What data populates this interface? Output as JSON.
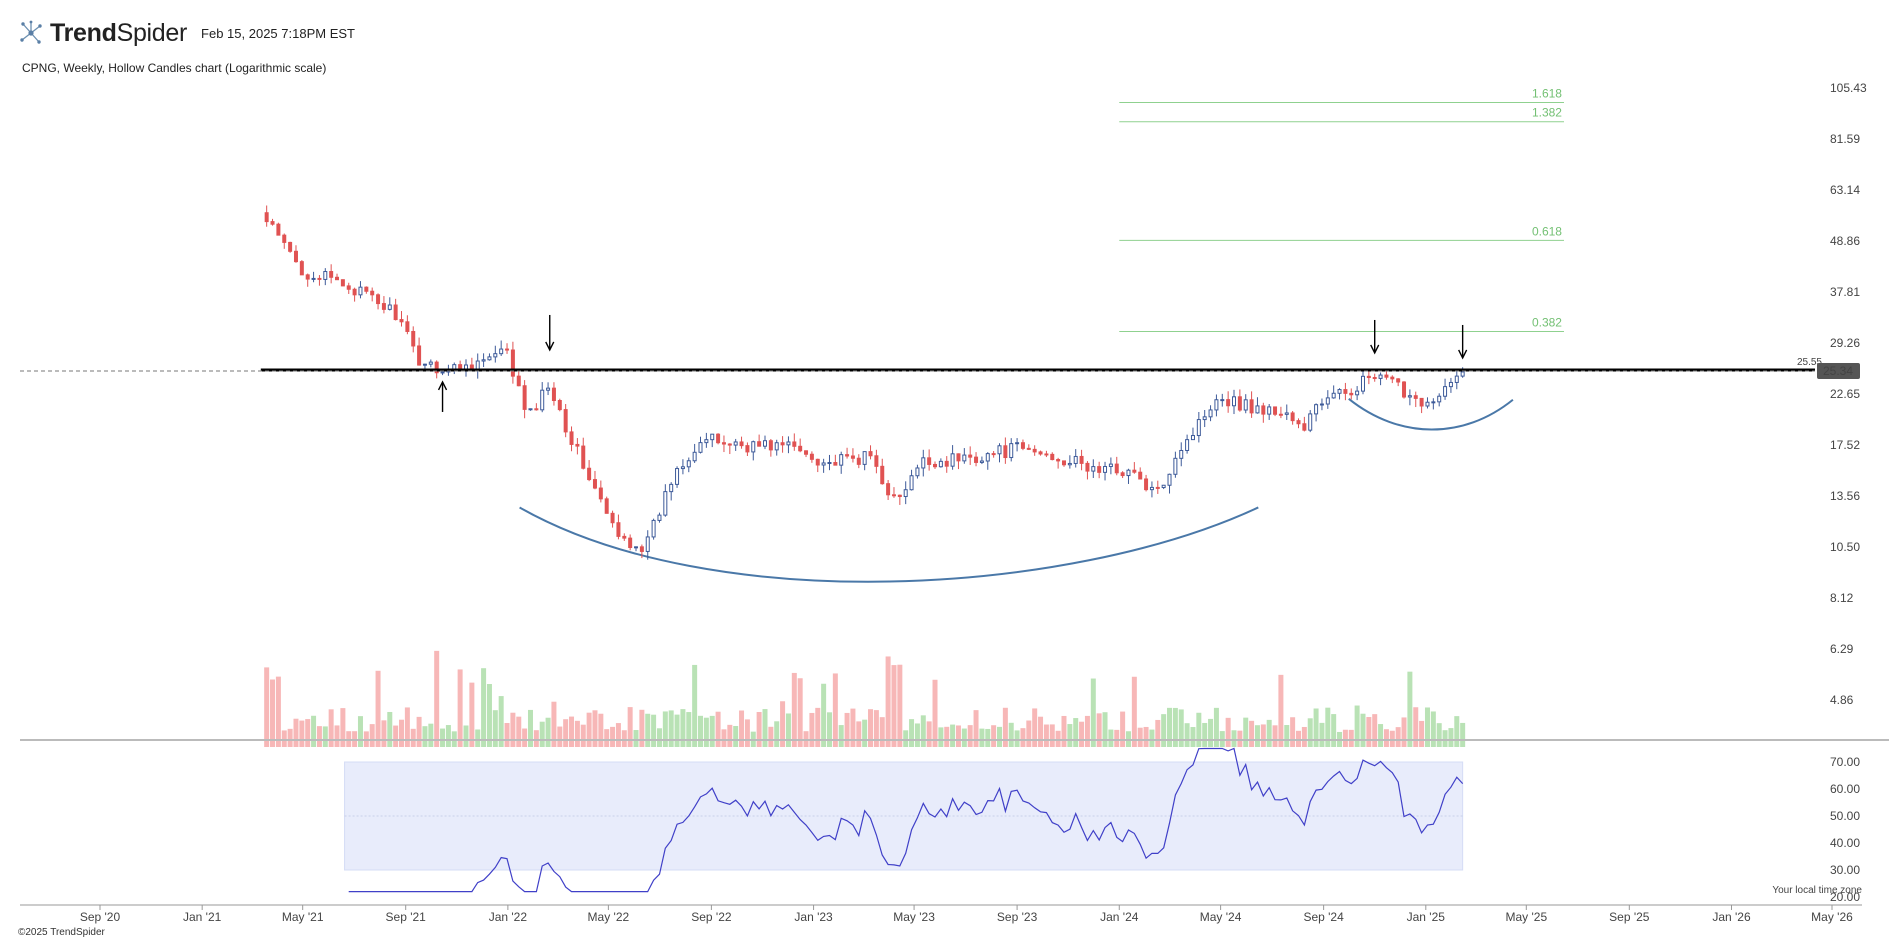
{
  "header": {
    "brand_bold": "Trend",
    "brand_light": "Spider",
    "date": "Feb 15, 2025 7:18PM EST"
  },
  "subtitle": "CPNG, Weekly, Hollow Candles chart (Logarithmic scale)",
  "footer": {
    "copyright": "©2025 TrendSpider",
    "timezone": "Your local time zone"
  },
  "colors": {
    "up": "#3d5a99",
    "down": "#e05252",
    "vol_up": "#b9e2b5",
    "vol_down": "#f7b7b7",
    "fib": "#8fd18f",
    "rsi_line": "#4040c8",
    "rsi_band": "#e8ecfb",
    "arc": "#4a78a8",
    "resistance": "#000000"
  },
  "chart_data": {
    "type": "candlestick",
    "symbol": "CPNG",
    "timeframe": "Weekly",
    "scale": "log",
    "x_axis_ticks": [
      "Sep '20",
      "Jan '21",
      "May '21",
      "Sep '21",
      "Jan '22",
      "May '22",
      "Sep '22",
      "Jan '23",
      "May '23",
      "Sep '23",
      "Jan '24",
      "May '24",
      "Sep '24",
      "Jan '25",
      "May '25",
      "Sep '25",
      "Jan '26",
      "May '26"
    ],
    "price_axis_ticks": [
      "105.43",
      "81.59",
      "63.14",
      "48.86",
      "37.81",
      "29.26",
      "22.65",
      "17.52",
      "13.56",
      "10.50",
      "8.12",
      "6.29",
      "4.86"
    ],
    "price_ylim": [
      3.9,
      120
    ],
    "resistance_level": "25.55",
    "last_price": "25.34",
    "fibonacci_levels": [
      {
        "label": "1.618",
        "value": 98
      },
      {
        "label": "1.382",
        "value": 89
      },
      {
        "label": "0.618",
        "value": 49
      },
      {
        "label": "0.382",
        "value": 31
      }
    ],
    "rsi": {
      "ticks": [
        "70.00",
        "60.00",
        "50.00",
        "40.00",
        "30.00",
        "20.00"
      ],
      "band": [
        30,
        70
      ],
      "midline": 50,
      "last": 62
    },
    "anchors": [
      {
        "t": "2021-03-12",
        "v": 56
      },
      {
        "t": "2021-05-01",
        "v": 42
      },
      {
        "t": "2021-06-25",
        "v": 39
      },
      {
        "t": "2021-08-20",
        "v": 34
      },
      {
        "t": "2021-09-15",
        "v": 27
      },
      {
        "t": "2021-10-20",
        "v": 25.5
      },
      {
        "t": "2021-12-10",
        "v": 27
      },
      {
        "t": "2021-12-30",
        "v": 28
      },
      {
        "t": "2022-01-25",
        "v": 20
      },
      {
        "t": "2022-02-20",
        "v": 24
      },
      {
        "t": "2022-03-15",
        "v": 18.5
      },
      {
        "t": "2022-04-15",
        "v": 14
      },
      {
        "t": "2022-05-12",
        "v": 11
      },
      {
        "t": "2022-06-15",
        "v": 10.5
      },
      {
        "t": "2022-07-20",
        "v": 15.5
      },
      {
        "t": "2022-08-20",
        "v": 18
      },
      {
        "t": "2022-10-15",
        "v": 17.5
      },
      {
        "t": "2022-12-01",
        "v": 17.5
      },
      {
        "t": "2023-01-20",
        "v": 16
      },
      {
        "t": "2023-03-10",
        "v": 16.5
      },
      {
        "t": "2023-04-10",
        "v": 13
      },
      {
        "t": "2023-05-10",
        "v": 16
      },
      {
        "t": "2023-07-10",
        "v": 16.5
      },
      {
        "t": "2023-09-01",
        "v": 17.2
      },
      {
        "t": "2023-10-20",
        "v": 16.5
      },
      {
        "t": "2023-12-01",
        "v": 15.5
      },
      {
        "t": "2024-01-10",
        "v": 15.5
      },
      {
        "t": "2024-02-15",
        "v": 13.6
      },
      {
        "t": "2024-03-10",
        "v": 17
      },
      {
        "t": "2024-04-01",
        "v": 19
      },
      {
        "t": "2024-04-25",
        "v": 22.5
      },
      {
        "t": "2024-06-15",
        "v": 21
      },
      {
        "t": "2024-07-20",
        "v": 20.5
      },
      {
        "t": "2024-08-10",
        "v": 18.5
      },
      {
        "t": "2024-08-20",
        "v": 21.5
      },
      {
        "t": "2024-09-20",
        "v": 22.5
      },
      {
        "t": "2024-10-25",
        "v": 24.5
      },
      {
        "t": "2024-11-20",
        "v": 24
      },
      {
        "t": "2024-12-15",
        "v": 22.5
      },
      {
        "t": "2025-01-10",
        "v": 21.5
      },
      {
        "t": "2025-02-14",
        "v": 25.3
      }
    ]
  }
}
